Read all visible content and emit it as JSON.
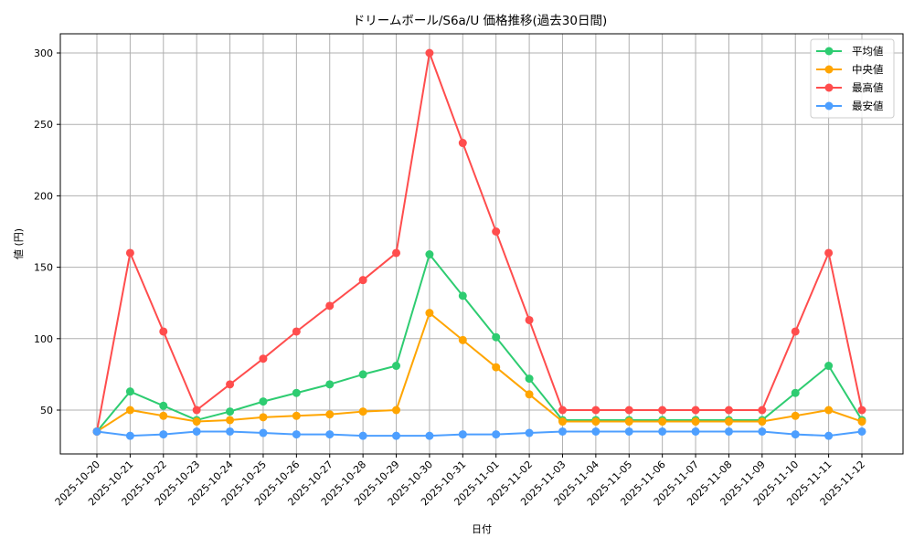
{
  "chart_data": {
    "type": "line",
    "title": "ドリームボール/S6a/U 価格推移(過去30日間)",
    "xlabel": "日付",
    "ylabel": "値 (円)",
    "ylim": [
      20,
      314
    ],
    "yticks": [
      50,
      100,
      150,
      200,
      250,
      300
    ],
    "grid": true,
    "legend_position": "upper right",
    "categories": [
      "2025-10-20",
      "2025-10-21",
      "2025-10-22",
      "2025-10-23",
      "2025-10-24",
      "2025-10-25",
      "2025-10-26",
      "2025-10-27",
      "2025-10-28",
      "2025-10-29",
      "2025-10-30",
      "2025-10-31",
      "2025-11-01",
      "2025-11-02",
      "2025-11-03",
      "2025-11-04",
      "2025-11-05",
      "2025-11-06",
      "2025-11-07",
      "2025-11-08",
      "2025-11-09",
      "2025-11-10",
      "2025-11-11",
      "2025-11-12"
    ],
    "series": [
      {
        "name": "平均値",
        "color": "#2ecc71",
        "values": [
          35,
          63,
          53,
          43,
          49,
          56,
          62,
          68,
          75,
          81,
          159,
          130,
          101,
          72,
          43,
          43,
          43,
          43,
          43,
          43,
          43,
          62,
          81,
          43
        ]
      },
      {
        "name": "中央値",
        "color": "#ffa500",
        "values": [
          35,
          50,
          46,
          42,
          43,
          45,
          46,
          47,
          49,
          50,
          118,
          99,
          80,
          61,
          42,
          42,
          42,
          42,
          42,
          42,
          42,
          46,
          50,
          42
        ]
      },
      {
        "name": "最高値",
        "color": "#ff4d4d",
        "values": [
          35,
          160,
          105,
          50,
          68,
          86,
          105,
          123,
          141,
          160,
          300,
          237,
          175,
          113,
          50,
          50,
          50,
          50,
          50,
          50,
          50,
          105,
          160,
          50
        ]
      },
      {
        "name": "最安値",
        "color": "#4d9fff",
        "values": [
          35,
          32,
          33,
          35,
          35,
          34,
          33,
          33,
          32,
          32,
          32,
          33,
          33,
          34,
          35,
          35,
          35,
          35,
          35,
          35,
          35,
          33,
          32,
          35
        ]
      }
    ]
  }
}
